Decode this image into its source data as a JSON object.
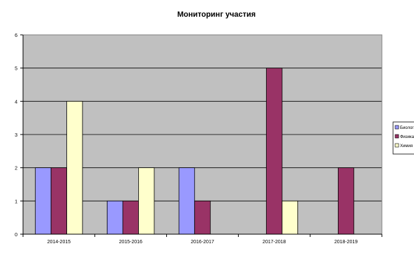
{
  "chart_data": {
    "type": "bar",
    "title": "Мониторинг участия",
    "xlabel": "",
    "ylabel": "",
    "categories": [
      "2014-2015",
      "2015-2016",
      "2016-2017",
      "2017-2018",
      "2018-2019"
    ],
    "series": [
      {
        "name": "Биология",
        "values": [
          2,
          1,
          2,
          0,
          0
        ],
        "color": "#9999ff"
      },
      {
        "name": "Физика",
        "values": [
          2,
          1,
          1,
          5,
          2
        ],
        "color": "#993366"
      },
      {
        "name": "Химия",
        "values": [
          4,
          2,
          0,
          1,
          0
        ],
        "color": "#ffffcc"
      }
    ],
    "ylim": [
      0,
      6
    ],
    "yticks": [
      0,
      1,
      2,
      3,
      4,
      5,
      6
    ],
    "grid": true,
    "plot_background": "#c0c0c0",
    "legend": "right"
  }
}
